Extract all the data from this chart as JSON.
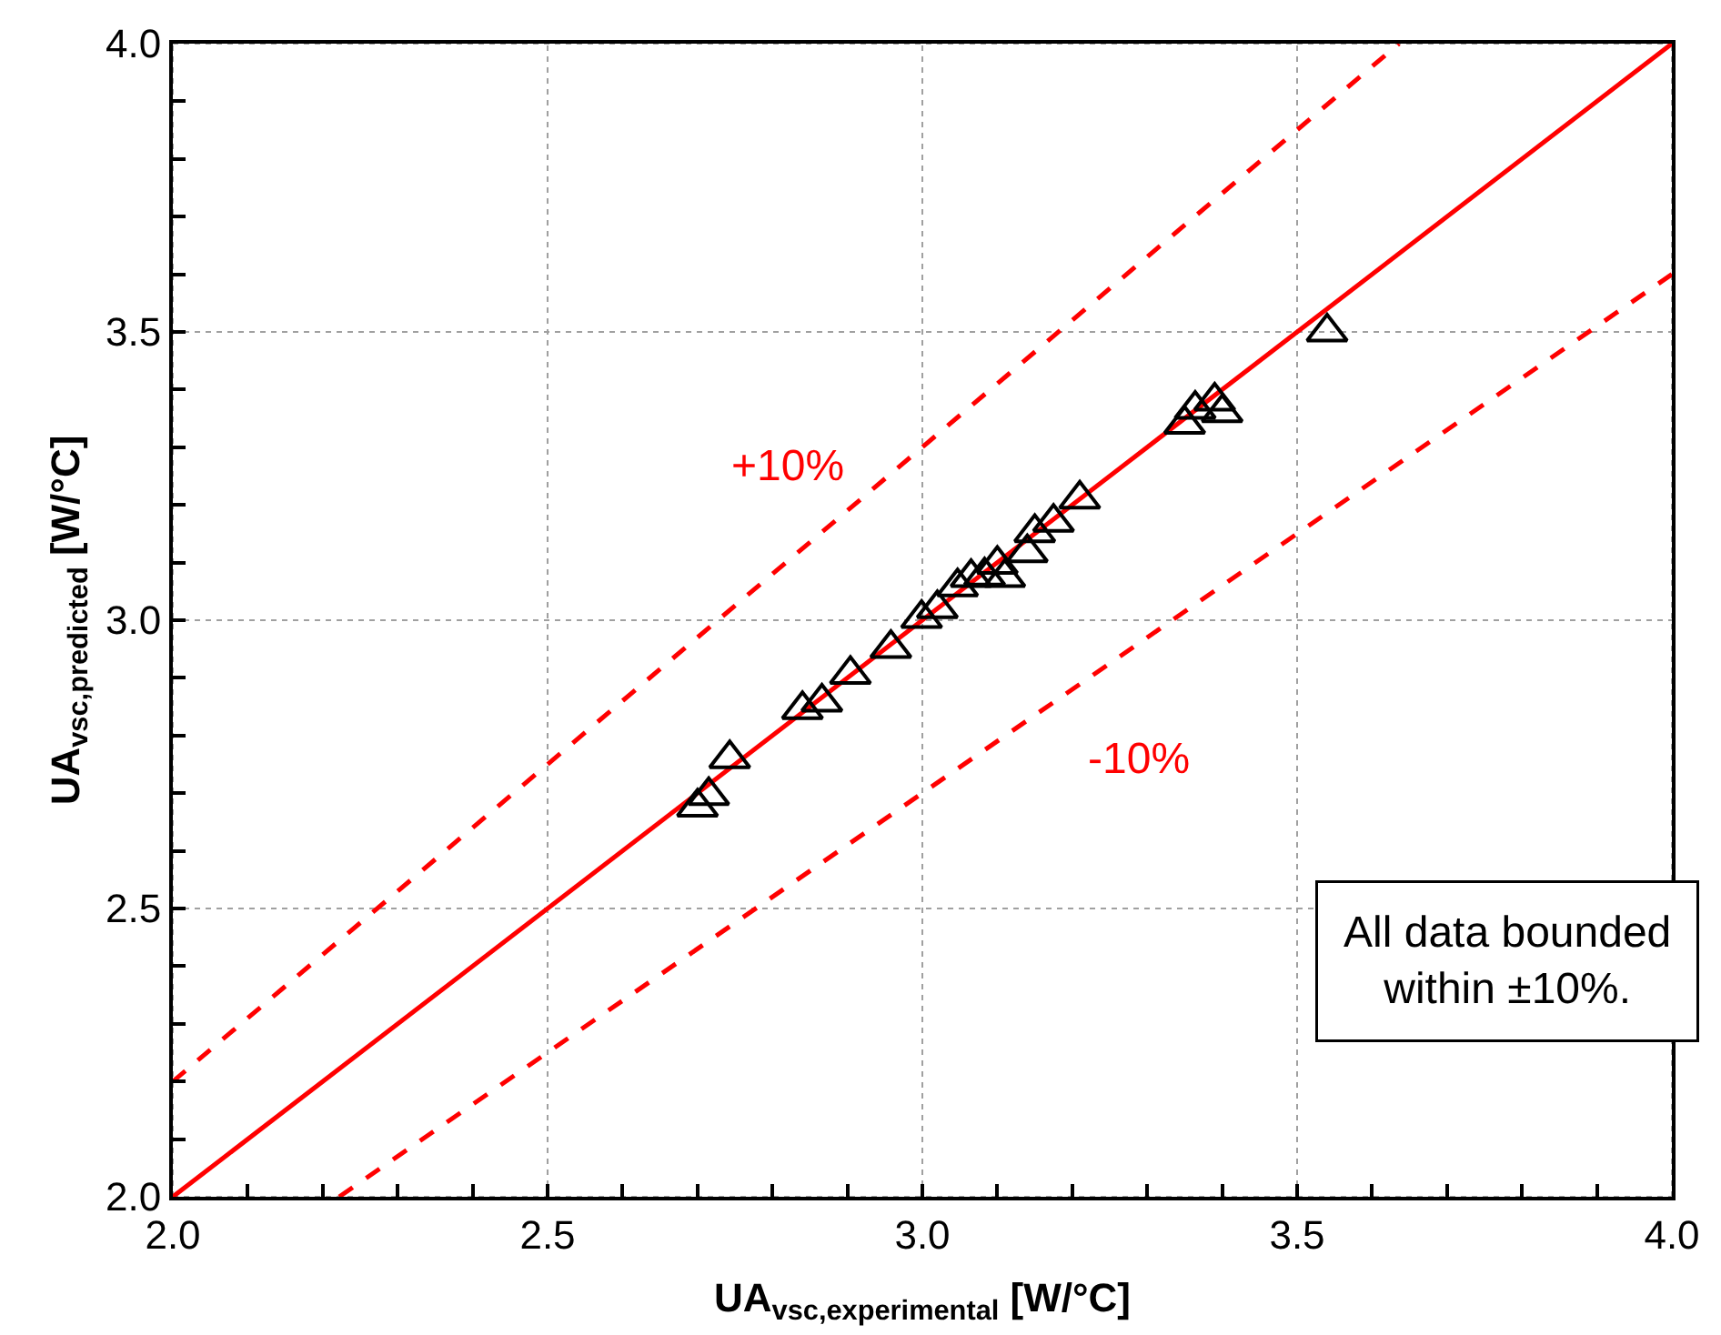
{
  "chart_data": {
    "type": "scatter",
    "xlabel": "UA$_{vsc,experimental}$ [W/°C]",
    "ylabel": "UA$_{vsc,predicted}$ [W/°C]",
    "xlim": [
      2.0,
      4.0
    ],
    "ylim": [
      2.0,
      4.0
    ],
    "xticks": [
      {
        "value": 2.0,
        "label": "2.0"
      },
      {
        "value": 2.1,
        "label": null
      },
      {
        "value": 2.2,
        "label": null
      },
      {
        "value": 2.3,
        "label": null
      },
      {
        "value": 2.4,
        "label": null
      },
      {
        "value": 2.5,
        "label": "2.5"
      },
      {
        "value": 2.6,
        "label": null
      },
      {
        "value": 2.7,
        "label": null
      },
      {
        "value": 2.8,
        "label": null
      },
      {
        "value": 2.9,
        "label": null
      },
      {
        "value": 3.0,
        "label": "3.0"
      },
      {
        "value": 3.1,
        "label": null
      },
      {
        "value": 3.2,
        "label": null
      },
      {
        "value": 3.3,
        "label": null
      },
      {
        "value": 3.4,
        "label": null
      },
      {
        "value": 3.5,
        "label": "3.5"
      },
      {
        "value": 3.6,
        "label": null
      },
      {
        "value": 3.7,
        "label": null
      },
      {
        "value": 3.8,
        "label": null
      },
      {
        "value": 3.9,
        "label": null
      },
      {
        "value": 4.0,
        "label": "4.0"
      }
    ],
    "yticks": [
      {
        "value": 2.0,
        "label": "2.0"
      },
      {
        "value": 2.1,
        "label": null
      },
      {
        "value": 2.2,
        "label": null
      },
      {
        "value": 2.3,
        "label": null
      },
      {
        "value": 2.4,
        "label": null
      },
      {
        "value": 2.5,
        "label": "2.5"
      },
      {
        "value": 2.6,
        "label": null
      },
      {
        "value": 2.7,
        "label": null
      },
      {
        "value": 2.8,
        "label": null
      },
      {
        "value": 2.9,
        "label": null
      },
      {
        "value": 3.0,
        "label": "3.0"
      },
      {
        "value": 3.1,
        "label": null
      },
      {
        "value": 3.2,
        "label": null
      },
      {
        "value": 3.3,
        "label": null
      },
      {
        "value": 3.4,
        "label": null
      },
      {
        "value": 3.5,
        "label": "3.5"
      },
      {
        "value": 3.6,
        "label": null
      },
      {
        "value": 3.7,
        "label": null
      },
      {
        "value": 3.8,
        "label": null
      },
      {
        "value": 3.9,
        "label": null
      },
      {
        "value": 4.0,
        "label": "4.0"
      }
    ],
    "grid": true,
    "series": [
      {
        "type": "line",
        "color": "#ff0000",
        "line_style": "solid",
        "marker": "none",
        "x": [
          2.0,
          4.0
        ],
        "values": [
          2.0,
          4.0
        ]
      },
      {
        "type": "line",
        "color": "#ff0000",
        "line_style": "dashed",
        "marker": "none",
        "x": [
          2.0,
          3.636
        ],
        "values": [
          2.2,
          4.0
        ]
      },
      {
        "type": "line",
        "color": "#ff0000",
        "line_style": "dashed",
        "marker": "none",
        "x": [
          2.222,
          4.0
        ],
        "values": [
          2.0,
          3.6
        ]
      },
      {
        "color": "#000000",
        "marker": "triangle",
        "x": [
          2.7,
          2.715,
          2.743,
          2.84,
          2.866,
          2.904,
          2.958,
          2.999,
          3.02,
          3.047,
          3.065,
          3.083,
          3.1,
          3.11,
          3.14,
          3.15,
          3.175,
          3.21,
          3.35,
          3.364,
          3.39,
          3.4,
          3.54
        ],
        "values": [
          2.676,
          2.696,
          2.76,
          2.845,
          2.858,
          2.906,
          2.951,
          3.003,
          3.02,
          3.058,
          3.074,
          3.077,
          3.097,
          3.074,
          3.117,
          3.152,
          3.17,
          3.21,
          3.34,
          3.366,
          3.38,
          3.36,
          3.5
        ]
      }
    ],
    "annotations": [
      "+10%",
      "-10%",
      "All data bounded\nwithin ±10%."
    ]
  }
}
